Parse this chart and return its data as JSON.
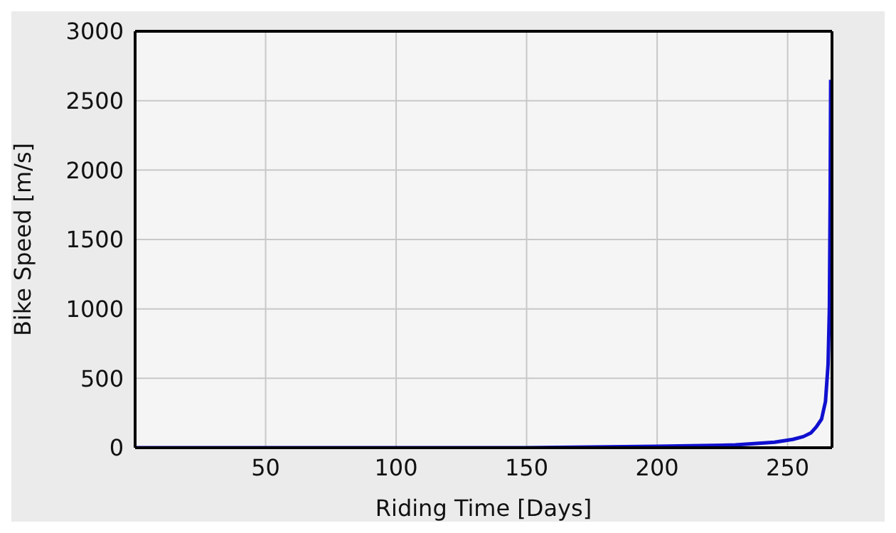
{
  "chart_data": {
    "type": "line",
    "xlabel": "Riding Time [Days]",
    "ylabel": "Bike Speed [m/s]",
    "x": [
      0,
      50,
      100,
      150,
      200,
      230,
      245,
      252,
      256,
      259,
      261,
      263,
      264.5,
      265.5,
      266,
      266.3,
      266.5
    ],
    "series": [
      {
        "color": "#1010d0",
        "values": [
          0,
          0,
          0,
          0,
          10,
          20,
          40,
          60,
          80,
          108,
          150,
          206,
          333,
          600,
          1000,
          1800,
          2650
        ]
      }
    ],
    "xlim": [
      0,
      267
    ],
    "xticks": [
      50,
      100,
      150,
      200,
      250
    ],
    "ylim": [
      0,
      3000
    ],
    "yticks": [
      0,
      500,
      1000,
      1500,
      2000,
      2500,
      3000
    ],
    "grid": true,
    "marker": "none",
    "line_style": "solid"
  }
}
